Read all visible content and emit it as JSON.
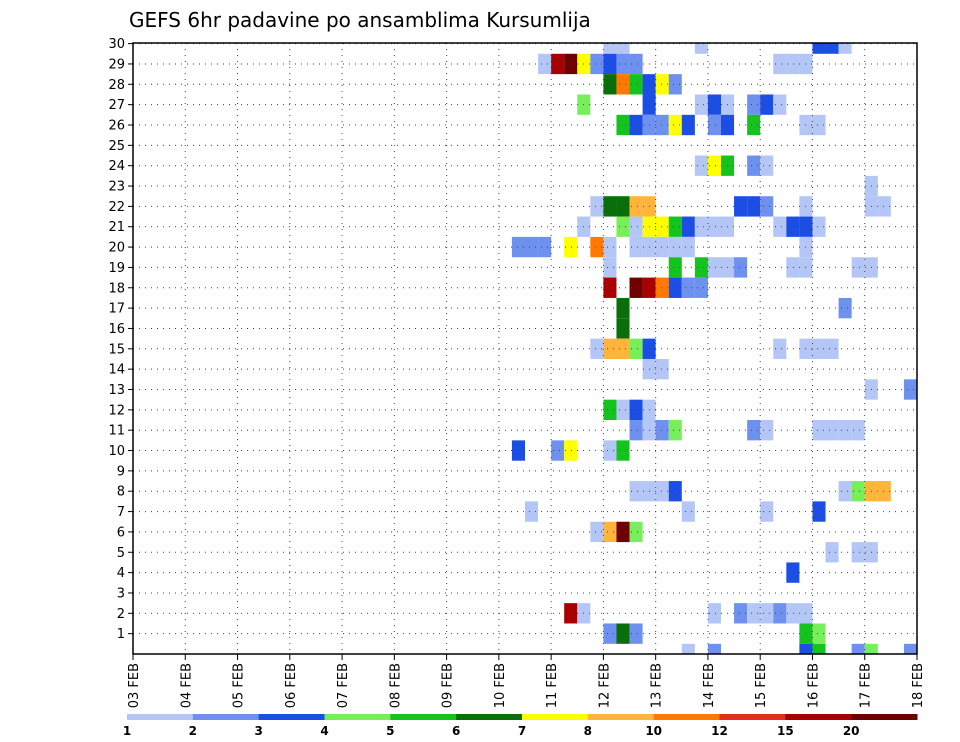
{
  "chart_data": {
    "type": "heatmap",
    "title": "GEFS 6hr padavine po ansamblima Kursumlija",
    "xlabel": "",
    "ylabel": "",
    "x_tick_labels": [
      "03 FEB",
      "04 FEB",
      "05 FEB",
      "06 FEB",
      "07 FEB",
      "08 FEB",
      "09 FEB",
      "10 FEB",
      "11 FEB",
      "12 FEB",
      "13 FEB",
      "14 FEB",
      "15 FEB",
      "16 FEB",
      "17 FEB",
      "18 FEB"
    ],
    "y_tick_labels": [
      "1",
      "2",
      "3",
      "4",
      "5",
      "6",
      "7",
      "8",
      "9",
      "10",
      "11",
      "12",
      "13",
      "14",
      "15",
      "16",
      "17",
      "18",
      "19",
      "20",
      "21",
      "22",
      "23",
      "24",
      "25",
      "26",
      "27",
      "28",
      "29",
      "30"
    ],
    "xlim_days": [
      3,
      18
    ],
    "ylim_members": [
      0,
      30
    ],
    "time_step_hours": 6,
    "grid": true,
    "colorbar": {
      "position": "bottom",
      "colors": [
        "#b4c6f5",
        "#6e91f0",
        "#1c4ee4",
        "#78ee5a",
        "#14c31e",
        "#0a6e0a",
        "#ffff00",
        "#ffb43c",
        "#ff7800",
        "#e0301e",
        "#a80000",
        "#6e0000"
      ],
      "labels": [
        "1",
        "2",
        "3",
        "4",
        "5",
        "6",
        "7",
        "8",
        "10",
        "12",
        "15",
        "20"
      ]
    },
    "cells": [
      {
        "member": 30,
        "day": 12.0,
        "value": 1
      },
      {
        "member": 30,
        "day": 12.25,
        "value": 1
      },
      {
        "member": 30,
        "day": 13.75,
        "value": 1
      },
      {
        "member": 30,
        "day": 16.0,
        "value": 3
      },
      {
        "member": 30,
        "day": 16.25,
        "value": 3
      },
      {
        "member": 30,
        "day": 16.5,
        "value": 1
      },
      {
        "member": 29,
        "day": 10.75,
        "value": 1
      },
      {
        "member": 29,
        "day": 11.0,
        "value": 15
      },
      {
        "member": 29,
        "day": 11.25,
        "value": 20
      },
      {
        "member": 29,
        "day": 11.5,
        "value": 7
      },
      {
        "member": 29,
        "day": 11.75,
        "value": 2
      },
      {
        "member": 29,
        "day": 12.0,
        "value": 3
      },
      {
        "member": 29,
        "day": 12.25,
        "value": 2
      },
      {
        "member": 29,
        "day": 12.5,
        "value": 2
      },
      {
        "member": 29,
        "day": 15.25,
        "value": 1
      },
      {
        "member": 29,
        "day": 15.5,
        "value": 1
      },
      {
        "member": 29,
        "day": 15.75,
        "value": 1
      },
      {
        "member": 28,
        "day": 12.0,
        "value": 6
      },
      {
        "member": 28,
        "day": 12.25,
        "value": 10
      },
      {
        "member": 28,
        "day": 12.5,
        "value": 5
      },
      {
        "member": 28,
        "day": 12.75,
        "value": 3
      },
      {
        "member": 28,
        "day": 13.0,
        "value": 7
      },
      {
        "member": 28,
        "day": 13.25,
        "value": 2
      },
      {
        "member": 27,
        "day": 11.5,
        "value": 4
      },
      {
        "member": 27,
        "day": 12.75,
        "value": 3
      },
      {
        "member": 27,
        "day": 13.75,
        "value": 1
      },
      {
        "member": 27,
        "day": 14.0,
        "value": 3
      },
      {
        "member": 27,
        "day": 14.25,
        "value": 1
      },
      {
        "member": 27,
        "day": 14.75,
        "value": 2
      },
      {
        "member": 27,
        "day": 15.0,
        "value": 3
      },
      {
        "member": 27,
        "day": 15.25,
        "value": 1
      },
      {
        "member": 26,
        "day": 12.25,
        "value": 5
      },
      {
        "member": 26,
        "day": 12.5,
        "value": 3
      },
      {
        "member": 26,
        "day": 12.75,
        "value": 2
      },
      {
        "member": 26,
        "day": 13.0,
        "value": 2
      },
      {
        "member": 26,
        "day": 13.25,
        "value": 7
      },
      {
        "member": 26,
        "day": 13.5,
        "value": 3
      },
      {
        "member": 26,
        "day": 14.0,
        "value": 2
      },
      {
        "member": 26,
        "day": 14.25,
        "value": 3
      },
      {
        "member": 26,
        "day": 14.75,
        "value": 5
      },
      {
        "member": 26,
        "day": 15.75,
        "value": 1
      },
      {
        "member": 26,
        "day": 16.0,
        "value": 1
      },
      {
        "member": 24,
        "day": 13.75,
        "value": 1
      },
      {
        "member": 24,
        "day": 14.0,
        "value": 7
      },
      {
        "member": 24,
        "day": 14.25,
        "value": 5
      },
      {
        "member": 24,
        "day": 14.75,
        "value": 2
      },
      {
        "member": 24,
        "day": 15.0,
        "value": 1
      },
      {
        "member": 23,
        "day": 17.0,
        "value": 1
      },
      {
        "member": 22,
        "day": 11.75,
        "value": 1
      },
      {
        "member": 22,
        "day": 12.0,
        "value": 6
      },
      {
        "member": 22,
        "day": 12.25,
        "value": 6
      },
      {
        "member": 22,
        "day": 12.5,
        "value": 8
      },
      {
        "member": 22,
        "day": 12.75,
        "value": 8
      },
      {
        "member": 22,
        "day": 14.5,
        "value": 3
      },
      {
        "member": 22,
        "day": 14.75,
        "value": 3
      },
      {
        "member": 22,
        "day": 15.0,
        "value": 2
      },
      {
        "member": 22,
        "day": 15.75,
        "value": 1
      },
      {
        "member": 22,
        "day": 17.0,
        "value": 1
      },
      {
        "member": 22,
        "day": 17.25,
        "value": 1
      },
      {
        "member": 21,
        "day": 11.5,
        "value": 1
      },
      {
        "member": 21,
        "day": 12.25,
        "value": 4
      },
      {
        "member": 21,
        "day": 12.5,
        "value": 1
      },
      {
        "member": 21,
        "day": 12.75,
        "value": 7
      },
      {
        "member": 21,
        "day": 13.0,
        "value": 7
      },
      {
        "member": 21,
        "day": 13.25,
        "value": 5
      },
      {
        "member": 21,
        "day": 13.5,
        "value": 3
      },
      {
        "member": 21,
        "day": 13.75,
        "value": 1
      },
      {
        "member": 21,
        "day": 14.0,
        "value": 1
      },
      {
        "member": 21,
        "day": 14.25,
        "value": 1
      },
      {
        "member": 21,
        "day": 15.25,
        "value": 1
      },
      {
        "member": 21,
        "day": 15.5,
        "value": 3
      },
      {
        "member": 21,
        "day": 15.75,
        "value": 3
      },
      {
        "member": 21,
        "day": 16.0,
        "value": 1
      },
      {
        "member": 20,
        "day": 10.25,
        "value": 2
      },
      {
        "member": 20,
        "day": 10.5,
        "value": 2
      },
      {
        "member": 20,
        "day": 10.75,
        "value": 2
      },
      {
        "member": 20,
        "day": 11.25,
        "value": 7
      },
      {
        "member": 20,
        "day": 11.75,
        "value": 10
      },
      {
        "member": 20,
        "day": 12.0,
        "value": 1
      },
      {
        "member": 20,
        "day": 12.5,
        "value": 1
      },
      {
        "member": 20,
        "day": 12.75,
        "value": 1
      },
      {
        "member": 20,
        "day": 13.0,
        "value": 1
      },
      {
        "member": 20,
        "day": 13.25,
        "value": 1
      },
      {
        "member": 20,
        "day": 13.5,
        "value": 1
      },
      {
        "member": 20,
        "day": 15.75,
        "value": 1
      },
      {
        "member": 20,
        "day": 18.0,
        "value": 1
      },
      {
        "member": 19,
        "day": 12.0,
        "value": 1
      },
      {
        "member": 19,
        "day": 13.25,
        "value": 5
      },
      {
        "member": 19,
        "day": 13.75,
        "value": 5
      },
      {
        "member": 19,
        "day": 14.0,
        "value": 1
      },
      {
        "member": 19,
        "day": 14.25,
        "value": 1
      },
      {
        "member": 19,
        "day": 14.5,
        "value": 2
      },
      {
        "member": 19,
        "day": 15.5,
        "value": 1
      },
      {
        "member": 19,
        "day": 15.75,
        "value": 1
      },
      {
        "member": 19,
        "day": 16.75,
        "value": 1
      },
      {
        "member": 19,
        "day": 17.0,
        "value": 1
      },
      {
        "member": 18,
        "day": 12.0,
        "value": 15
      },
      {
        "member": 18,
        "day": 12.5,
        "value": 20
      },
      {
        "member": 18,
        "day": 12.75,
        "value": 15
      },
      {
        "member": 18,
        "day": 13.0,
        "value": 10
      },
      {
        "member": 18,
        "day": 13.25,
        "value": 3
      },
      {
        "member": 18,
        "day": 13.5,
        "value": 2
      },
      {
        "member": 18,
        "day": 13.75,
        "value": 2
      },
      {
        "member": 17,
        "day": 12.25,
        "value": 6
      },
      {
        "member": 17,
        "day": 16.5,
        "value": 2
      },
      {
        "member": 16,
        "day": 12.25,
        "value": 6
      },
      {
        "member": 15,
        "day": 11.75,
        "value": 1
      },
      {
        "member": 15,
        "day": 12.0,
        "value": 8
      },
      {
        "member": 15,
        "day": 12.25,
        "value": 8
      },
      {
        "member": 15,
        "day": 12.5,
        "value": 4
      },
      {
        "member": 15,
        "day": 12.75,
        "value": 3
      },
      {
        "member": 15,
        "day": 15.25,
        "value": 1
      },
      {
        "member": 15,
        "day": 15.75,
        "value": 1
      },
      {
        "member": 15,
        "day": 16.0,
        "value": 1
      },
      {
        "member": 15,
        "day": 16.25,
        "value": 1
      },
      {
        "member": 14,
        "day": 12.75,
        "value": 1
      },
      {
        "member": 14,
        "day": 13.0,
        "value": 1
      },
      {
        "member": 13,
        "day": 17.0,
        "value": 1
      },
      {
        "member": 13,
        "day": 17.75,
        "value": 2
      },
      {
        "member": 13,
        "day": 18.0,
        "value": 1
      },
      {
        "member": 12,
        "day": 12.0,
        "value": 5
      },
      {
        "member": 12,
        "day": 12.25,
        "value": 1
      },
      {
        "member": 12,
        "day": 12.5,
        "value": 3
      },
      {
        "member": 12,
        "day": 12.75,
        "value": 1
      },
      {
        "member": 11,
        "day": 12.5,
        "value": 2
      },
      {
        "member": 11,
        "day": 12.75,
        "value": 1
      },
      {
        "member": 11,
        "day": 13.0,
        "value": 2
      },
      {
        "member": 11,
        "day": 13.25,
        "value": 4
      },
      {
        "member": 11,
        "day": 14.75,
        "value": 2
      },
      {
        "member": 11,
        "day": 15.0,
        "value": 1
      },
      {
        "member": 11,
        "day": 16.0,
        "value": 1
      },
      {
        "member": 11,
        "day": 16.25,
        "value": 1
      },
      {
        "member": 11,
        "day": 16.5,
        "value": 1
      },
      {
        "member": 11,
        "day": 16.75,
        "value": 1
      },
      {
        "member": 10,
        "day": 10.25,
        "value": 3
      },
      {
        "member": 10,
        "day": 11.0,
        "value": 2
      },
      {
        "member": 10,
        "day": 11.25,
        "value": 7
      },
      {
        "member": 10,
        "day": 12.0,
        "value": 1
      },
      {
        "member": 10,
        "day": 12.25,
        "value": 5
      },
      {
        "member": 10,
        "day": 18.0,
        "value": 3
      },
      {
        "member": 8,
        "day": 12.5,
        "value": 1
      },
      {
        "member": 8,
        "day": 12.75,
        "value": 1
      },
      {
        "member": 8,
        "day": 13.0,
        "value": 1
      },
      {
        "member": 8,
        "day": 13.25,
        "value": 3
      },
      {
        "member": 8,
        "day": 16.5,
        "value": 1
      },
      {
        "member": 8,
        "day": 16.75,
        "value": 4
      },
      {
        "member": 8,
        "day": 17.0,
        "value": 8
      },
      {
        "member": 8,
        "day": 17.25,
        "value": 8
      },
      {
        "member": 7,
        "day": 10.5,
        "value": 1
      },
      {
        "member": 7,
        "day": 13.5,
        "value": 1
      },
      {
        "member": 7,
        "day": 15.0,
        "value": 1
      },
      {
        "member": 7,
        "day": 16.0,
        "value": 3
      },
      {
        "member": 6,
        "day": 11.75,
        "value": 1
      },
      {
        "member": 6,
        "day": 12.0,
        "value": 8
      },
      {
        "member": 6,
        "day": 12.25,
        "value": 20
      },
      {
        "member": 6,
        "day": 12.5,
        "value": 4
      },
      {
        "member": 5,
        "day": 16.25,
        "value": 1
      },
      {
        "member": 5,
        "day": 16.75,
        "value": 1
      },
      {
        "member": 5,
        "day": 17.0,
        "value": 1
      },
      {
        "member": 4,
        "day": 15.5,
        "value": 3
      },
      {
        "member": 2,
        "day": 11.25,
        "value": 15
      },
      {
        "member": 2,
        "day": 11.5,
        "value": 1
      },
      {
        "member": 2,
        "day": 14.0,
        "value": 1
      },
      {
        "member": 2,
        "day": 14.5,
        "value": 2
      },
      {
        "member": 2,
        "day": 14.75,
        "value": 1
      },
      {
        "member": 2,
        "day": 15.0,
        "value": 1
      },
      {
        "member": 2,
        "day": 15.25,
        "value": 2
      },
      {
        "member": 2,
        "day": 15.5,
        "value": 1
      },
      {
        "member": 2,
        "day": 15.75,
        "value": 1
      },
      {
        "member": 1,
        "day": 12.0,
        "value": 2
      },
      {
        "member": 1,
        "day": 12.25,
        "value": 6
      },
      {
        "member": 1,
        "day": 12.5,
        "value": 2
      },
      {
        "member": 1,
        "day": 15.75,
        "value": 5
      },
      {
        "member": 1,
        "day": 16.0,
        "value": 4
      },
      {
        "member": 0,
        "day": 13.5,
        "value": 1
      },
      {
        "member": 0,
        "day": 14.0,
        "value": 2
      },
      {
        "member": 0,
        "day": 15.75,
        "value": 3
      },
      {
        "member": 0,
        "day": 16.0,
        "value": 5
      },
      {
        "member": 0,
        "day": 16.75,
        "value": 2
      },
      {
        "member": 0,
        "day": 17.0,
        "value": 4
      },
      {
        "member": 0,
        "day": 17.75,
        "value": 2
      }
    ]
  }
}
